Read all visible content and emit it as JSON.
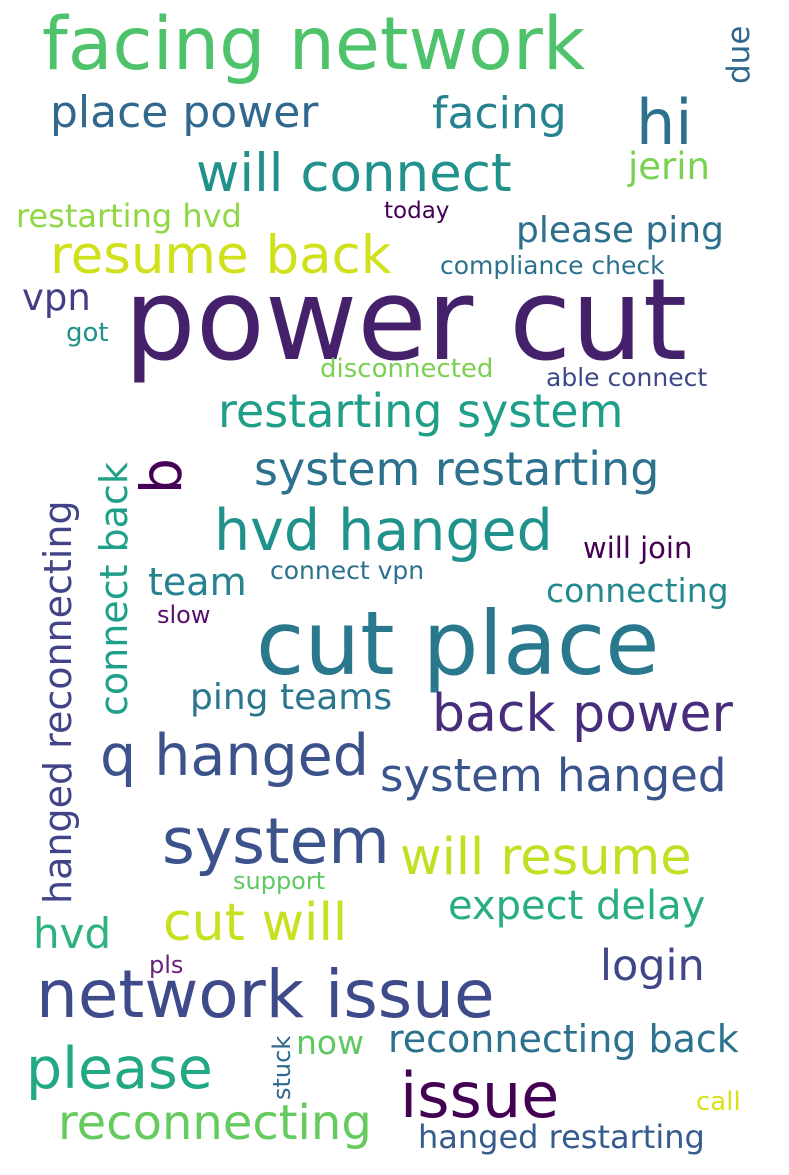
{
  "words": [
    {
      "key": "power_cut",
      "text": "power cut",
      "color": "#45216c"
    },
    {
      "key": "cut_place",
      "text": "cut place",
      "color": "#2a788e"
    },
    {
      "key": "facing_network",
      "text": "facing network",
      "color": "#4ec36b"
    },
    {
      "key": "network_issue",
      "text": "network issue",
      "color": "#3e4a89"
    },
    {
      "key": "system",
      "text": "system",
      "color": "#3b528b"
    },
    {
      "key": "issue",
      "text": "issue",
      "color": "#440154"
    },
    {
      "key": "q_hanged",
      "text": "q hanged",
      "color": "#3b528b"
    },
    {
      "key": "hvd_hanged",
      "text": "hvd hanged",
      "color": "#20928c"
    },
    {
      "key": "please",
      "text": "please",
      "color": "#22a884"
    },
    {
      "key": "will_connect",
      "text": "will connect",
      "color": "#21918c"
    },
    {
      "key": "resume_back",
      "text": "resume back",
      "color": "#d0e11c"
    },
    {
      "key": "back_power",
      "text": "back power",
      "color": "#472d7b"
    },
    {
      "key": "will_resume",
      "text": "will resume",
      "color": "#c2df23"
    },
    {
      "key": "cut_will",
      "text": "cut will",
      "color": "#c8e020"
    },
    {
      "key": "restarting_system",
      "text": "restarting system",
      "color": "#1f9e89"
    },
    {
      "key": "system_restarting",
      "text": "system restarting",
      "color": "#2c718e"
    },
    {
      "key": "system_hanged",
      "text": "system hanged",
      "color": "#39558c"
    },
    {
      "key": "reconnecting",
      "text": "reconnecting",
      "color": "#65cb5e"
    },
    {
      "key": "hi",
      "text": "hi",
      "color": "#2c728e"
    },
    {
      "key": "q",
      "text": "q",
      "color": "#440154"
    },
    {
      "key": "place_power",
      "text": "place power",
      "color": "#31688e"
    },
    {
      "key": "facing",
      "text": "facing",
      "color": "#26828e"
    },
    {
      "key": "expect_delay",
      "text": "expect delay",
      "color": "#29af7f"
    },
    {
      "key": "login",
      "text": "login",
      "color": "#404688"
    },
    {
      "key": "reconnecting_back",
      "text": "reconnecting back",
      "color": "#2c728e"
    },
    {
      "key": "hanged_reconnecting",
      "text": "hanged reconnecting",
      "color": "#414487"
    },
    {
      "key": "connect_back",
      "text": "connect back",
      "color": "#1fa088"
    },
    {
      "key": "team",
      "text": "team",
      "color": "#26828e"
    },
    {
      "key": "hvd",
      "text": "hvd",
      "color": "#2db27d"
    },
    {
      "key": "ping_teams",
      "text": "ping teams",
      "color": "#2a768e"
    },
    {
      "key": "hanged_restarting",
      "text": "hanged restarting",
      "color": "#365c8d"
    },
    {
      "key": "please_ping",
      "text": "please ping",
      "color": "#2d708e"
    },
    {
      "key": "vpn",
      "text": "vpn",
      "color": "#433e85"
    },
    {
      "key": "jerin",
      "text": "jerin",
      "color": "#7ad151"
    },
    {
      "key": "connecting",
      "text": "connecting",
      "color": "#23898e"
    },
    {
      "key": "restarting_hvd",
      "text": "restarting hvd",
      "color": "#8fd744"
    },
    {
      "key": "will_join",
      "text": "will join",
      "color": "#440154"
    },
    {
      "key": "now",
      "text": "now",
      "color": "#5ec962"
    },
    {
      "key": "due",
      "text": "due",
      "color": "#31688e"
    },
    {
      "key": "compliance_check",
      "text": "compliance check",
      "color": "#2c728e"
    },
    {
      "key": "disconnected",
      "text": "disconnected",
      "color": "#7ad151"
    },
    {
      "key": "able_connect",
      "text": "able connect",
      "color": "#3e4989"
    },
    {
      "key": "connect_vpn",
      "text": "connect vpn",
      "color": "#2c728e"
    },
    {
      "key": "support",
      "text": "support",
      "color": "#5ec962"
    },
    {
      "key": "call",
      "text": "call",
      "color": "#d8e219"
    },
    {
      "key": "today",
      "text": "today",
      "color": "#440154"
    },
    {
      "key": "got",
      "text": "got",
      "color": "#21918c"
    },
    {
      "key": "slow",
      "text": "slow",
      "color": "#5a0f6e"
    },
    {
      "key": "pls",
      "text": "pls",
      "color": "#6a1f7a"
    },
    {
      "key": "stuck",
      "text": "stuck",
      "color": "#31688e"
    }
  ]
}
